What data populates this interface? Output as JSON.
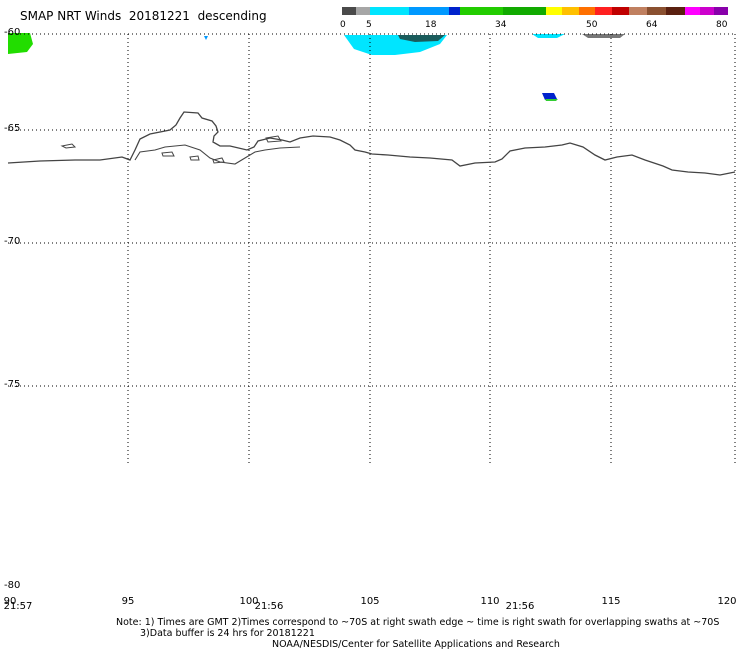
{
  "header": {
    "title": "SMAP NRT Winds  20181221  descending"
  },
  "colorbar": {
    "labels": [
      "0",
      "5",
      "18",
      "34",
      "50",
      "64",
      "80"
    ],
    "colors": [
      "#4a4a4a",
      "#a6a6a6",
      "#00e5ff",
      "#0099ff",
      "#0022cc",
      "#22cc00",
      "#11aa00",
      "#ffff00",
      "#ffc000",
      "#ff7000",
      "#ff2020",
      "#c00000",
      "#c08060",
      "#8a5030",
      "#5a2010",
      "#ff00ff",
      "#cc00cc",
      "#8800aa"
    ]
  },
  "map": {
    "lat_ticks": [
      "-60",
      "-65",
      "-70",
      "-75",
      "-80"
    ],
    "lon_ticks": [
      "90",
      "95",
      "100",
      "105",
      "110",
      "115",
      "120"
    ],
    "time_ticks": [
      "21:57",
      "21:56",
      "21:56"
    ]
  },
  "footer": {
    "note_line1": "Note: 1) Times are GMT 2)Times correspond to ~70S at right swath edge ~ time is right swath for overlapping swaths at ~70S",
    "note_line2": "3)Data buffer is 24 hrs for 20181221",
    "credit": "NOAA/NESDIS/Center for Satellite Applications and Research"
  }
}
